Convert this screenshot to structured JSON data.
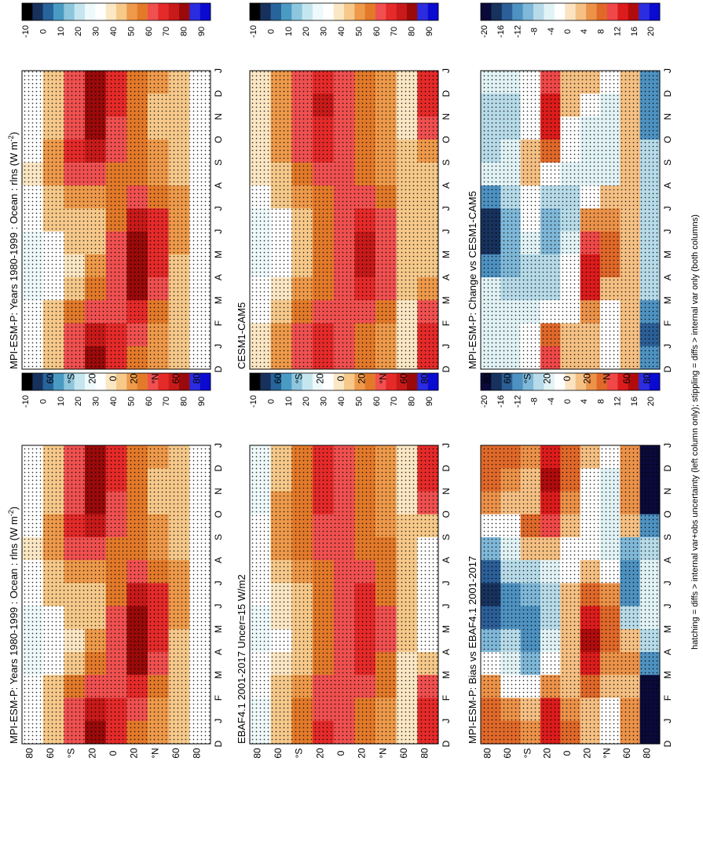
{
  "footnote": "hatching = diffs > internal var+obs uncertainty (left column only); stippling = diffs > internal var only (both columns)",
  "months": [
    "D",
    "J",
    "F",
    "M",
    "A",
    "M",
    "J",
    "J",
    "A",
    "S",
    "O",
    "N",
    "D",
    "J"
  ],
  "lat_ticks": [
    "-80",
    "-60",
    "°S",
    "-20",
    "0",
    "20",
    "°N",
    "-60",
    "-80"
  ],
  "lat_ticks_display": [
    "80",
    "60",
    "°S",
    "20",
    "0",
    "20",
    "°N",
    "60",
    "80"
  ],
  "chart_data": [
    {
      "id": "model-left-top",
      "type": "heatmap",
      "title": "MPI-ESM-P: Years 1980-1999 : Ocean : rlns (W m",
      "title_sup": "-2",
      "title_end": ")",
      "x": [
        "D",
        "J",
        "F",
        "M",
        "A",
        "M",
        "J",
        "J",
        "A",
        "S",
        "O",
        "N",
        "D",
        "J"
      ],
      "y_ticks": [
        "80",
        "60",
        "°N",
        "20",
        "0",
        "20",
        "°S",
        "60",
        "80"
      ],
      "colorbar_ticks": [
        "90",
        "80",
        "70",
        "60",
        "50",
        "40",
        "30",
        "20",
        "10",
        "0",
        "-10"
      ],
      "scale": "absolute",
      "rows": [
        [
          32,
          30,
          30,
          34,
          36,
          34,
          30,
          27,
          26,
          28,
          30,
          32,
          32,
          32
        ],
        [
          44,
          42,
          42,
          46,
          48,
          44,
          40,
          34,
          30,
          34,
          40,
          44,
          44,
          44
        ],
        [
          56,
          58,
          58,
          60,
          56,
          48,
          44,
          40,
          36,
          42,
          50,
          56,
          58,
          56
        ],
        [
          72,
          76,
          74,
          66,
          56,
          48,
          44,
          44,
          46,
          50,
          58,
          68,
          72,
          72
        ],
        [
          60,
          60,
          58,
          56,
          54,
          52,
          54,
          56,
          58,
          58,
          58,
          60,
          60,
          60
        ],
        [
          54,
          52,
          50,
          50,
          52,
          58,
          66,
          74,
          78,
          72,
          62,
          56,
          54,
          54
        ],
        [
          46,
          44,
          44,
          46,
          48,
          54,
          60,
          64,
          64,
          58,
          52,
          48,
          46,
          46
        ],
        [
          40,
          40,
          42,
          42,
          44,
          46,
          46,
          46,
          44,
          42,
          40,
          40,
          40,
          40
        ],
        [
          34,
          34,
          34,
          34,
          34,
          34,
          34,
          34,
          34,
          34,
          34,
          34,
          34,
          34
        ]
      ]
    },
    {
      "id": "obs-left-mid",
      "type": "heatmap",
      "title": "EBAF4.1 2001-2017 Uncer=15 W/m2",
      "x": [
        "D",
        "J",
        "F",
        "M",
        "A",
        "M",
        "J",
        "J",
        "A",
        "S",
        "O",
        "N",
        "D",
        "J"
      ],
      "y_ticks": [
        "80",
        "60",
        "°N",
        "20",
        "0",
        "20",
        "°S",
        "60",
        "80"
      ],
      "colorbar_ticks": [
        "90",
        "80",
        "70",
        "60",
        "50",
        "40",
        "30",
        "20",
        "10",
        "0",
        "-10"
      ],
      "scale": "absolute",
      "rows": [
        [
          24,
          24,
          26,
          30,
          32,
          32,
          30,
          28,
          28,
          30,
          30,
          28,
          24,
          24
        ],
        [
          42,
          44,
          46,
          48,
          46,
          42,
          38,
          36,
          34,
          38,
          42,
          44,
          42,
          42
        ],
        [
          52,
          54,
          52,
          52,
          50,
          46,
          44,
          42,
          40,
          44,
          48,
          52,
          52,
          52
        ],
        [
          60,
          62,
          62,
          58,
          56,
          54,
          52,
          52,
          52,
          54,
          56,
          58,
          60,
          60
        ],
        [
          56,
          56,
          56,
          56,
          56,
          56,
          56,
          58,
          58,
          58,
          58,
          58,
          56,
          56
        ],
        [
          52,
          52,
          50,
          52,
          54,
          58,
          60,
          64,
          64,
          62,
          58,
          54,
          52,
          52
        ],
        [
          46,
          46,
          46,
          48,
          50,
          52,
          54,
          56,
          56,
          54,
          50,
          48,
          46,
          46
        ],
        [
          36,
          36,
          38,
          40,
          42,
          42,
          42,
          42,
          40,
          38,
          38,
          38,
          36,
          36
        ],
        [
          60,
          60,
          56,
          40,
          34,
          30,
          30,
          30,
          32,
          40,
          56,
          62,
          60,
          60
        ]
      ]
    },
    {
      "id": "bias-left-bot",
      "type": "heatmap",
      "title": "MPI-ESM-P: Bias vs EBAF4.1 2001-2017",
      "x": [
        "D",
        "J",
        "F",
        "M",
        "A",
        "M",
        "J",
        "J",
        "A",
        "S",
        "O",
        "N",
        "D",
        "J"
      ],
      "y_ticks": [
        "80",
        "60",
        "°N",
        "20",
        "0",
        "20",
        "°S",
        "60",
        "80"
      ],
      "colorbar_ticks": [
        "20",
        "16",
        "12",
        "8",
        "4",
        "0",
        "-4",
        "-8",
        "-12",
        "-16",
        "-20"
      ],
      "scale": "difference",
      "rows": [
        [
          6,
          6,
          4,
          0,
          -6,
          -12,
          -18,
          -14,
          -6,
          0,
          4,
          6,
          6,
          6
        ],
        [
          6,
          4,
          2,
          0,
          -2,
          -4,
          -8,
          -8,
          -4,
          -2,
          0,
          4,
          6,
          6
        ],
        [
          4,
          2,
          2,
          6,
          2,
          -4,
          -6,
          -8,
          -10,
          -6,
          0,
          2,
          4,
          4
        ],
        [
          12,
          14,
          12,
          8,
          2,
          -2,
          -4,
          -4,
          -2,
          0,
          4,
          10,
          12,
          12
        ],
        [
          6,
          6,
          4,
          2,
          0,
          0,
          2,
          2,
          2,
          2,
          2,
          4,
          6,
          6
        ],
        [
          2,
          0,
          0,
          0,
          0,
          2,
          6,
          10,
          16,
          12,
          6,
          2,
          2,
          2
        ],
        [
          0,
          -2,
          -2,
          -2,
          -2,
          0,
          4,
          6,
          6,
          4,
          2,
          0,
          0,
          0
        ],
        [
          4,
          4,
          4,
          2,
          -6,
          -10,
          -8,
          -4,
          2,
          4,
          2,
          4,
          4,
          4
        ],
        [
          -26,
          -26,
          -20,
          -10,
          -4,
          -2,
          -2,
          -2,
          -4,
          -10,
          -20,
          -26,
          -26,
          -26
        ]
      ]
    },
    {
      "id": "model-right-top",
      "type": "heatmap",
      "title": "MPI-ESM-P: Years 1980-1999 : Ocean : rlns (W m",
      "title_sup": "-2",
      "title_end": ")",
      "x": [
        "D",
        "J",
        "F",
        "M",
        "A",
        "M",
        "J",
        "J",
        "A",
        "S",
        "O",
        "N",
        "D",
        "J"
      ],
      "y_ticks": [
        "80",
        "60",
        "°N",
        "20",
        "0",
        "20",
        "°S",
        "60",
        "80"
      ],
      "colorbar_ticks": [
        "90",
        "80",
        "70",
        "60",
        "50",
        "40",
        "30",
        "20",
        "10",
        "0",
        "-10"
      ],
      "scale": "absolute",
      "rows": [
        [
          32,
          30,
          30,
          34,
          36,
          34,
          30,
          27,
          26,
          28,
          30,
          32,
          32,
          32
        ],
        [
          44,
          42,
          42,
          46,
          48,
          44,
          40,
          34,
          30,
          34,
          40,
          44,
          44,
          44
        ],
        [
          56,
          58,
          58,
          60,
          56,
          48,
          44,
          40,
          36,
          42,
          50,
          56,
          58,
          56
        ],
        [
          72,
          76,
          74,
          66,
          56,
          48,
          44,
          44,
          46,
          50,
          58,
          68,
          72,
          72
        ],
        [
          60,
          60,
          58,
          56,
          54,
          52,
          54,
          56,
          58,
          58,
          58,
          60,
          60,
          60
        ],
        [
          54,
          52,
          50,
          50,
          52,
          58,
          66,
          74,
          78,
          72,
          62,
          56,
          54,
          54
        ],
        [
          46,
          44,
          44,
          46,
          48,
          54,
          60,
          64,
          64,
          58,
          52,
          48,
          46,
          46
        ],
        [
          40,
          40,
          42,
          42,
          44,
          46,
          46,
          46,
          44,
          42,
          40,
          40,
          40,
          40
        ],
        [
          34,
          34,
          34,
          34,
          34,
          34,
          34,
          34,
          34,
          34,
          34,
          34,
          34,
          34
        ]
      ]
    },
    {
      "id": "cesm-right-mid",
      "type": "heatmap",
      "title": "CESM1-CAM5",
      "x": [
        "D",
        "J",
        "F",
        "M",
        "A",
        "M",
        "J",
        "J",
        "A",
        "S",
        "O",
        "N",
        "D",
        "J"
      ],
      "y_ticks": [
        "80",
        "60",
        "°N",
        "20",
        "0",
        "20",
        "°S",
        "60",
        "80"
      ],
      "colorbar_ticks": [
        "90",
        "80",
        "70",
        "60",
        "50",
        "40",
        "30",
        "20",
        "10",
        "0",
        "-10"
      ],
      "scale": "absolute",
      "rows": [
        [
          36,
          36,
          36,
          38,
          36,
          30,
          26,
          24,
          26,
          30,
          34,
          36,
          36,
          36
        ],
        [
          46,
          48,
          48,
          48,
          44,
          40,
          34,
          30,
          30,
          36,
          42,
          46,
          46,
          46
        ],
        [
          56,
          58,
          58,
          58,
          54,
          48,
          44,
          42,
          42,
          46,
          52,
          56,
          56,
          56
        ],
        [
          64,
          66,
          64,
          60,
          56,
          52,
          50,
          50,
          50,
          54,
          58,
          62,
          64,
          64
        ],
        [
          58,
          58,
          58,
          56,
          56,
          56,
          58,
          58,
          58,
          58,
          58,
          58,
          58,
          58
        ],
        [
          52,
          52,
          52,
          52,
          54,
          58,
          62,
          66,
          66,
          62,
          58,
          54,
          52,
          52
        ],
        [
          46,
          46,
          46,
          46,
          48,
          52,
          56,
          58,
          58,
          56,
          52,
          48,
          46,
          46
        ],
        [
          38,
          38,
          38,
          40,
          42,
          44,
          44,
          44,
          42,
          40,
          38,
          38,
          38,
          38
        ],
        [
          60,
          60,
          56,
          48,
          44,
          40,
          40,
          40,
          42,
          48,
          56,
          60,
          60,
          60
        ]
      ]
    },
    {
      "id": "change-right-bot",
      "type": "heatmap",
      "title": "MPI-ESM-P: Change vs CESM1-CAM5",
      "x": [
        "D",
        "J",
        "F",
        "M",
        "A",
        "M",
        "J",
        "J",
        "A",
        "S",
        "O",
        "N",
        "D",
        "J"
      ],
      "y_ticks": [
        "80",
        "60",
        "°N",
        "20",
        "0",
        "20",
        "°S",
        "60",
        "80"
      ],
      "colorbar_ticks": [
        "20",
        "16",
        "12",
        "8",
        "4",
        "0",
        "-4",
        "-8",
        "-12",
        "-16",
        "-20"
      ],
      "scale": "difference",
      "rows": [
        [
          -2,
          -4,
          -4,
          -4,
          -2,
          -8,
          -16,
          -18,
          -10,
          -2,
          -2,
          -2,
          -2,
          -2
        ],
        [
          -2,
          -4,
          -4,
          -2,
          -2,
          -4,
          -6,
          -6,
          -6,
          -4,
          -2,
          -2,
          -2,
          -2
        ],
        [
          0,
          0,
          0,
          2,
          2,
          0,
          0,
          -2,
          -4,
          -4,
          -2,
          0,
          0,
          0
        ],
        [
          8,
          10,
          10,
          6,
          0,
          -4,
          -6,
          -6,
          -4,
          -4,
          0,
          6,
          8,
          8
        ],
        [
          2,
          2,
          0,
          0,
          -2,
          -4,
          -4,
          -2,
          0,
          0,
          0,
          2,
          2,
          2
        ],
        [
          2,
          0,
          -2,
          -2,
          -2,
          0,
          4,
          8,
          12,
          10,
          4,
          2,
          2,
          2
        ],
        [
          0,
          -2,
          -2,
          -2,
          -2,
          2,
          4,
          6,
          6,
          2,
          0,
          0,
          0,
          0
        ],
        [
          2,
          2,
          2,
          2,
          2,
          2,
          2,
          2,
          2,
          2,
          2,
          2,
          2,
          2
        ],
        [
          -10,
          -10,
          -8,
          -4,
          -4,
          -4,
          -4,
          -4,
          -4,
          -4,
          -8,
          -14,
          -10,
          -10
        ]
      ]
    }
  ],
  "colors": {
    "absolute": [
      "#000000",
      "#17315c",
      "#27649b",
      "#4a9bc4",
      "#8ec6dd",
      "#c6e6ef",
      "#eef9fb",
      "#ffffff",
      "#fbe7c4",
      "#f6c98a",
      "#ee9a4a",
      "#e37a2a",
      "#f05050",
      "#e52a2a",
      "#c81a1a",
      "#9a0a0a",
      "#2b2be0",
      "#0a0ad0"
    ],
    "difference": [
      "#0a0a3a",
      "#18325e",
      "#2c5f97",
      "#4e92c2",
      "#7fb8d8",
      "#b7dbe9",
      "#e2f3f6",
      "#ffffff",
      "#fbe3c2",
      "#f5c083",
      "#ec9249",
      "#e0692a",
      "#f04848",
      "#dc1c1c",
      "#b00c0c",
      "#2d2de0",
      "#0a0ad0"
    ]
  }
}
